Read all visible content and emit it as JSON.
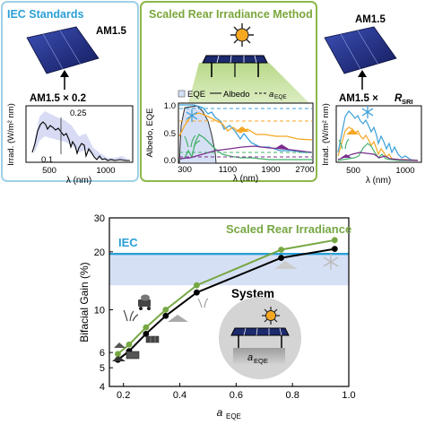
{
  "iec_panel": {
    "title": "IEC Standards",
    "module_label": "AM1.5",
    "spectrum_label": "AM1.5 × 0.2",
    "ylabel": "Irrad. (W/m² nm)",
    "xlabel": "λ (nm)",
    "ann_high": "0.25",
    "ann_low": "0.1",
    "xticks": [
      "500",
      "1000"
    ],
    "colors": {
      "frame": "#9fd0e8",
      "title": "#2a9fd6"
    }
  },
  "sri_panel": {
    "title": "Scaled Rear Irradiance Method",
    "legend": {
      "eqe": "EQE",
      "albedo": "Albedo",
      "aeqe": "a",
      "aeqe_sub": "EQE"
    },
    "ylabel": "Albedo, EQE",
    "xlabel": "λ (nm)",
    "xticks": [
      "300",
      "1100",
      "1900",
      "2700"
    ],
    "yticks": [
      "0.0",
      "0.5",
      "1.0"
    ],
    "colors": {
      "frame": "#8db84a",
      "title": "#7aa63a",
      "eqe": "#1e1e1e",
      "snow": "#3a9fd8",
      "sand": "#f5a623",
      "grass": "#44b26a",
      "soil": "#7b2d8e"
    }
  },
  "right_panel": {
    "module_label": "AM1.5",
    "spectrum_label": "AM1.5 ×",
    "spectrum_label_r": "R",
    "spectrum_label_sub": "SRI",
    "ylabel": "Irrad. (W/m² nm)",
    "xlabel": "λ (nm)",
    "xticks": [
      "500",
      "1000"
    ]
  },
  "icons": [
    "sun-icon",
    "pv-array-icon",
    "solar-module-icon",
    "snowflake-icon",
    "sand-pile-icon",
    "grass-icon",
    "soil-pile-icon",
    "concrete-mixer-icon",
    "roof-tile-icon",
    "asphalt-pile-icon"
  ],
  "main_chart": {
    "ylabel": "Bifacial Gain (%)",
    "xlabel": "a",
    "xlabel_sub": "EQE",
    "iec_label": "IEC",
    "sri_label": "Scaled Rear Irradiance",
    "system_label": "System",
    "inset_label": "a",
    "inset_label_sub": "EQE",
    "colors": {
      "iec": "#2a9fd6",
      "band": "#d6e0f5",
      "sri": "#77a743",
      "system": "#000000"
    }
  },
  "chart_data": {
    "type": "line",
    "xlabel": "aEQE",
    "ylabel": "Bifacial Gain (%)",
    "xlim": [
      0.15,
      1.0
    ],
    "ylim": [
      4,
      30
    ],
    "yscale": "log",
    "xticks": [
      "0.2",
      "0.4",
      "0.6",
      "0.8",
      "1.0"
    ],
    "yticks": [
      "4",
      "5",
      "6",
      "10",
      "20",
      "30"
    ],
    "iec_value": 19.5,
    "iec_band": [
      13.4,
      19.5
    ],
    "series": [
      {
        "name": "Scaled Rear Irradiance",
        "color": "#77a743",
        "x": [
          0.18,
          0.22,
          0.28,
          0.35,
          0.46,
          0.76,
          0.95
        ],
        "y": [
          5.9,
          6.6,
          8.1,
          10.0,
          13.4,
          20.5,
          23.0
        ]
      },
      {
        "name": "System",
        "color": "#000000",
        "x": [
          0.18,
          0.22,
          0.28,
          0.35,
          0.46,
          0.76,
          0.95
        ],
        "y": [
          5.5,
          6.1,
          7.5,
          9.3,
          12.3,
          18.6,
          20.7
        ]
      }
    ]
  }
}
